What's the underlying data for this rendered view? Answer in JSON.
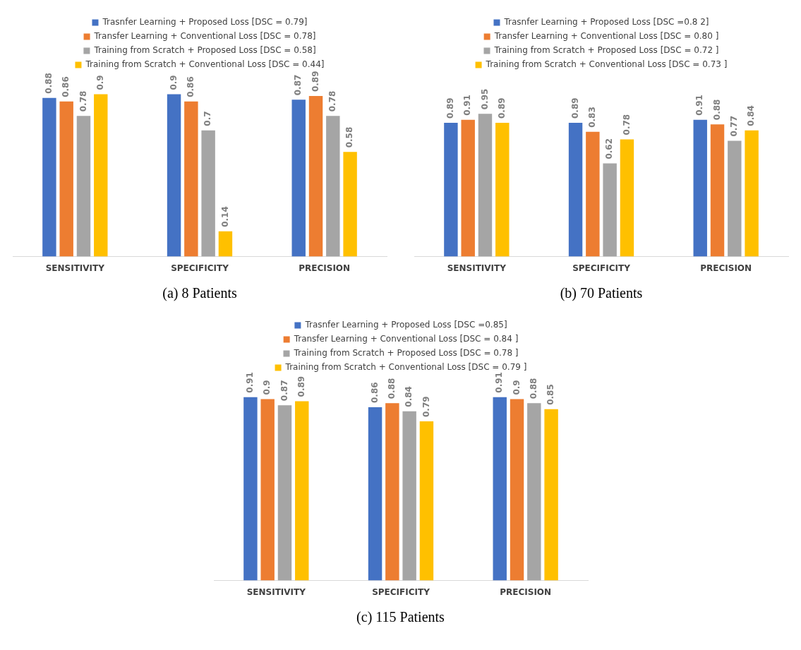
{
  "chart_data": [
    {
      "type": "bar",
      "categories": [
        "SENSITIVITY",
        "SPECIFICITY",
        "PRECISION"
      ],
      "series": [
        {
          "name": "Trasnfer Learning + Proposed Loss [DSC = 0.79]",
          "color": "#4472c4",
          "values": [
            0.88,
            0.9,
            0.87
          ]
        },
        {
          "name": "Transfer Learning + Conventional Loss [DSC = 0.78]",
          "color": "#ed7d31",
          "values": [
            0.86,
            0.86,
            0.89
          ]
        },
        {
          "name": "Training from Scratch + Proposed Loss [DSC = 0.58]",
          "color": "#a5a5a5",
          "values": [
            0.78,
            0.7,
            0.78
          ]
        },
        {
          "name": "Training from Scratch + Conventional Loss [DSC = 0.44]",
          "color": "#ffc000",
          "values": [
            0.9,
            0.14,
            0.58
          ]
        }
      ],
      "data_labels": true,
      "legend": "top",
      "grid": false,
      "annotations": [
        "(a) 8 Patients"
      ]
    },
    {
      "type": "bar",
      "categories": [
        "SENSITIVITY",
        "SPECIFICITY",
        "PRECISION"
      ],
      "series": [
        {
          "name": "Trasnfer Learning + Proposed Loss [DSC =0.8 2]",
          "color": "#4472c4",
          "values": [
            0.89,
            0.89,
            0.91
          ]
        },
        {
          "name": "Transfer Learning + Conventional Loss [DSC = 0.80 ]",
          "color": "#ed7d31",
          "values": [
            0.91,
            0.83,
            0.88
          ]
        },
        {
          "name": "Training from Scratch + Proposed Loss [DSC = 0.72 ]",
          "color": "#a5a5a5",
          "values": [
            0.95,
            0.62,
            0.77
          ]
        },
        {
          "name": "Training from Scratch + Conventional Loss [DSC = 0.73 ]",
          "color": "#ffc000",
          "values": [
            0.89,
            0.78,
            0.84
          ]
        }
      ],
      "data_labels": true,
      "legend": "top",
      "grid": false,
      "annotations": [
        "(b) 70 Patients"
      ]
    },
    {
      "type": "bar",
      "categories": [
        "SENSITIVITY",
        "SPECIFICITY",
        "PRECISION"
      ],
      "series": [
        {
          "name": "Trasnfer Learning + Proposed Loss [DSC =0.85]",
          "color": "#4472c4",
          "values": [
            0.91,
            0.86,
            0.91
          ]
        },
        {
          "name": "Transfer Learning + Conventional Loss [DSC = 0.84 ]",
          "color": "#ed7d31",
          "values": [
            0.9,
            0.88,
            0.9
          ]
        },
        {
          "name": "Training from Scratch + Proposed Loss [DSC = 0.78 ]",
          "color": "#a5a5a5",
          "values": [
            0.87,
            0.84,
            0.88
          ]
        },
        {
          "name": "Training from Scratch + Conventional Loss [DSC = 0.79 ]",
          "color": "#ffc000",
          "values": [
            0.89,
            0.79,
            0.85
          ]
        }
      ],
      "data_labels": true,
      "legend": "top",
      "grid": false,
      "annotations": [
        "(c) 115 Patients"
      ]
    }
  ]
}
